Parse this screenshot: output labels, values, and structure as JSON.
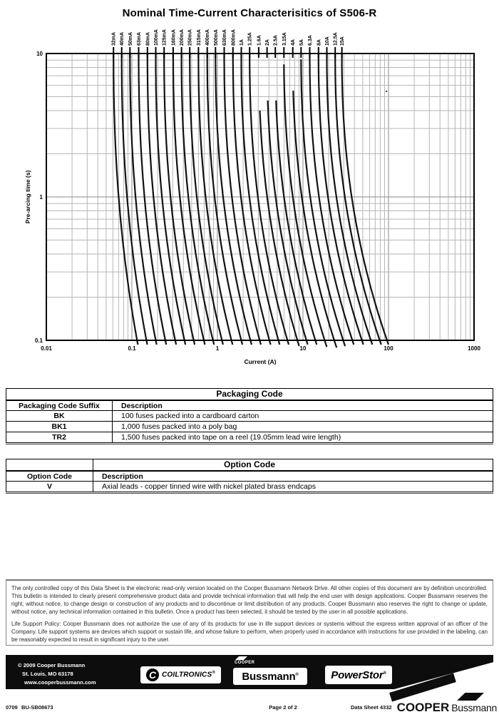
{
  "page": {
    "title": "Nominal Time-Current Characterisitics of S506-R"
  },
  "chart_data": {
    "type": "line",
    "title": "Nominal Time-Current Characterisitics of S506-R",
    "xlabel": "Current (A)",
    "ylabel": "Pre-arcing time (s)",
    "xlim": [
      0.01,
      1000
    ],
    "ylim": [
      0.1,
      10
    ],
    "x_ticks": [
      "0.01",
      "0.1",
      "1",
      "10",
      "100",
      "1000"
    ],
    "y_ticks": [
      "10",
      "1",
      "0.1"
    ],
    "grid": "log-log with minor gridlines",
    "legend_position": "labels rotated above top axis at each curve",
    "series": [
      {
        "label": "32mA",
        "amps": 0.032,
        "i_10s": 0.061,
        "i_01s": 0.115,
        "t_start": 10
      },
      {
        "label": "40mA",
        "amps": 0.04,
        "i_10s": 0.076,
        "i_01s": 0.148,
        "t_start": 10
      },
      {
        "label": "50mA",
        "amps": 0.05,
        "i_10s": 0.095,
        "i_01s": 0.19,
        "t_start": 10
      },
      {
        "label": "63mA",
        "amps": 0.063,
        "i_10s": 0.12,
        "i_01s": 0.246,
        "t_start": 10
      },
      {
        "label": "80mA",
        "amps": 0.08,
        "i_10s": 0.152,
        "i_01s": 0.321,
        "t_start": 10
      },
      {
        "label": "100mA",
        "amps": 0.1,
        "i_10s": 0.19,
        "i_01s": 0.412,
        "t_start": 10
      },
      {
        "label": "125mA",
        "amps": 0.125,
        "i_10s": 0.238,
        "i_01s": 0.528,
        "t_start": 10
      },
      {
        "label": "160mA",
        "amps": 0.16,
        "i_10s": 0.304,
        "i_01s": 0.694,
        "t_start": 10
      },
      {
        "label": "200mA",
        "amps": 0.2,
        "i_10s": 0.38,
        "i_01s": 0.887,
        "t_start": 10
      },
      {
        "label": "250mA",
        "amps": 0.25,
        "i_10s": 0.475,
        "i_01s": 1.13,
        "t_start": 10
      },
      {
        "label": "315mA",
        "amps": 0.315,
        "i_10s": 0.6,
        "i_01s": 1.46,
        "t_start": 10
      },
      {
        "label": "400mA",
        "amps": 0.4,
        "i_10s": 0.76,
        "i_01s": 1.9,
        "t_start": 10
      },
      {
        "label": "500mA",
        "amps": 0.5,
        "i_10s": 0.95,
        "i_01s": 2.43,
        "t_start": 10
      },
      {
        "label": "630mA",
        "amps": 0.63,
        "i_10s": 1.2,
        "i_01s": 3.12,
        "t_start": 10
      },
      {
        "label": "800mA",
        "amps": 0.8,
        "i_10s": 1.52,
        "i_01s": 4.05,
        "t_start": 10
      },
      {
        "label": "1A",
        "amps": 1.0,
        "i_10s": 1.9,
        "i_01s": 5.17,
        "t_start": 10
      },
      {
        "label": "1.25A",
        "amps": 1.25,
        "i_10s": 2.38,
        "i_01s": 6.59,
        "t_start": 10
      },
      {
        "label": "1.6A",
        "amps": 1.6,
        "i_10s": 3.04,
        "i_01s": 8.61,
        "t_start": 4.0
      },
      {
        "label": "2A",
        "amps": 2.0,
        "i_10s": 3.8,
        "i_01s": 10.97,
        "t_start": 4.7
      },
      {
        "label": "2.5A",
        "amps": 2.5,
        "i_10s": 4.75,
        "i_01s": 13.96,
        "t_start": 4.7
      },
      {
        "label": "3.15A",
        "amps": 3.15,
        "i_10s": 5.99,
        "i_01s": 17.93,
        "t_start": 8.4
      },
      {
        "label": "4A",
        "amps": 4.0,
        "i_10s": 7.6,
        "i_01s": 23.2,
        "t_start": 5.5
      },
      {
        "label": "5A",
        "amps": 5.0,
        "i_10s": 9.5,
        "i_01s": 29.5,
        "t_start": 9.1
      },
      {
        "label": "6.3A",
        "amps": 6.3,
        "i_10s": 12.0,
        "i_01s": 37.8,
        "t_start": 10
      },
      {
        "label": "8A",
        "amps": 8.0,
        "i_10s": 15.2,
        "i_01s": 48.9,
        "t_start": 10
      },
      {
        "label": "10A",
        "amps": 10.0,
        "i_10s": 19.0,
        "i_01s": 62.2,
        "t_start": 10
      },
      {
        "label": "12.5A",
        "amps": 12.5,
        "i_10s": 23.8,
        "i_01s": 79.0,
        "t_start": 10
      },
      {
        "label": "15A",
        "amps": 15.0,
        "i_10s": 28.5,
        "i_01s": 96.1,
        "t_start": 10
      }
    ]
  },
  "packaging_table": {
    "title": "Packaging Code",
    "headers": [
      "Packaging Code Suffix",
      "Description"
    ],
    "rows": [
      [
        "BK",
        "100 fuses packed into a cardboard carton"
      ],
      [
        "BK1",
        "1,000 fuses packed into a poly bag"
      ],
      [
        "TR2",
        "1,500 fuses packed into tape on a reel (19.05mm lead wire length)"
      ]
    ]
  },
  "option_table": {
    "title": "Option Code",
    "headers": [
      "Option Code",
      "Description"
    ],
    "rows": [
      [
        "V",
        "Axial leads - copper tinned wire with nickel plated brass endcaps"
      ]
    ]
  },
  "legal": {
    "para1": "The only controlled copy of this Data Sheet is the electronic read-only version located on the Cooper Bussmann Network Drive. All other copies of this document are by definition uncontrolled. This bulletin is intended to clearly present comprehensive product data and provide technical information that will help the end user with design applications. Cooper Bussmann reserves the right, without notice, to change design or construction of any products and to discontinue or limit distribution of any products. Cooper Bussmann also reserves the right to change or update, without notice, any technical information contained in this bulletin. Once a product has been selected, it should be tested by the user in all possible applications.",
    "para2": "Life Support Policy: Cooper Bussmann does not authorize the use of any of its products for use in life support devices or systems without the express written approval of an officer of the Company. Life support systems are devices which support or sustain life, and whose failure to perform, when properly used in accordance with instructions for use provided in the labeling, can be reasonably expected to result in significant injury to the user."
  },
  "footer_bar": {
    "copyright_line1": "© 2009 Cooper Bussmann",
    "copyright_line2": "St. Louis, MO 63178",
    "copyright_line3": "www.cooperbussmann.com",
    "coiltronics": {
      "initial": "C",
      "name": "COILTRONICS",
      "reg": "®"
    },
    "bussmann": {
      "above": "COOPER",
      "name": "Bussmann",
      "reg": "®"
    },
    "powerstor": {
      "name": "PowerStor",
      "reg": "®"
    },
    "bar_color": "#0d0d0d"
  },
  "bottom_line": {
    "left_code": "0709",
    "doc_code": "BU-SB08673",
    "page_number": "Page 2 of 2",
    "datasheet_number": "Data Sheet 4332",
    "brand_bold": "COOPER",
    "brand_regular": "Bussmann"
  }
}
